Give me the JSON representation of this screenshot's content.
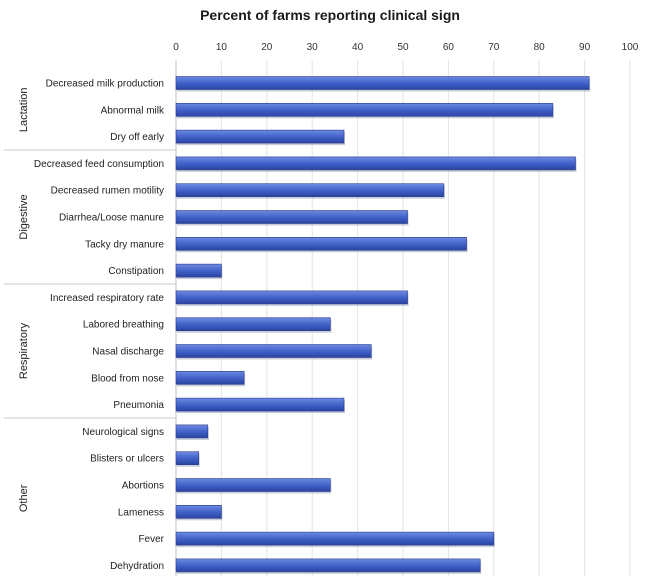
{
  "chart_data": {
    "type": "bar",
    "orientation": "horizontal",
    "title": "Percent of farms reporting clinical sign",
    "xlim": [
      0,
      100
    ],
    "x_ticks": [
      "0",
      "10",
      "20",
      "30",
      "40",
      "50",
      "60",
      "70",
      "80",
      "90",
      "100"
    ],
    "x_axis_position": "top",
    "grid": true,
    "bar_color": "#3f5fc7",
    "groups": [
      {
        "name": "Lactation",
        "items": [
          {
            "label": "Decreased milk production",
            "value": 91
          },
          {
            "label": "Abnormal milk",
            "value": 83
          },
          {
            "label": "Dry off early",
            "value": 37
          }
        ]
      },
      {
        "name": "Digestive",
        "items": [
          {
            "label": "Decreased feed consumption",
            "value": 88
          },
          {
            "label": "Decreased rumen motility",
            "value": 59
          },
          {
            "label": "Diarrhea/Loose manure",
            "value": 51
          },
          {
            "label": "Tacky dry manure",
            "value": 64
          },
          {
            "label": "Constipation",
            "value": 10
          }
        ]
      },
      {
        "name": "Respiratory",
        "items": [
          {
            "label": "Increased respiratory rate",
            "value": 51
          },
          {
            "label": "Labored breathing",
            "value": 34
          },
          {
            "label": "Nasal discharge",
            "value": 43
          },
          {
            "label": "Blood from nose",
            "value": 15
          },
          {
            "label": "Pneumonia",
            "value": 37
          }
        ]
      },
      {
        "name": "Other",
        "items": [
          {
            "label": "Neurological signs",
            "value": 7
          },
          {
            "label": "Blisters or ulcers",
            "value": 5
          },
          {
            "label": "Abortions",
            "value": 34
          },
          {
            "label": "Lameness",
            "value": 10
          },
          {
            "label": "Fever",
            "value": 70
          },
          {
            "label": "Dehydration",
            "value": 67
          }
        ]
      }
    ]
  }
}
